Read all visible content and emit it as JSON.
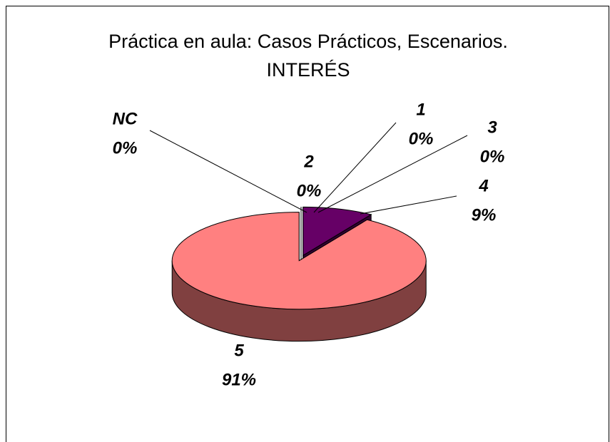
{
  "chart_data": {
    "type": "pie3d",
    "title": [
      "Práctica en aula: Casos Prácticos, Escenarios.",
      "INTERÉS"
    ],
    "categories": [
      "1",
      "2",
      "3",
      "4",
      "5",
      "NC"
    ],
    "values": [
      0,
      0,
      0,
      9,
      91,
      0
    ],
    "value_labels": [
      "0%",
      "0%",
      "0%",
      "9%",
      "91%",
      "0%"
    ],
    "colors": [
      "#ffffff",
      "#ffffff",
      "#ffffff",
      "#660066",
      "#ff8080",
      "#ffffff"
    ]
  }
}
